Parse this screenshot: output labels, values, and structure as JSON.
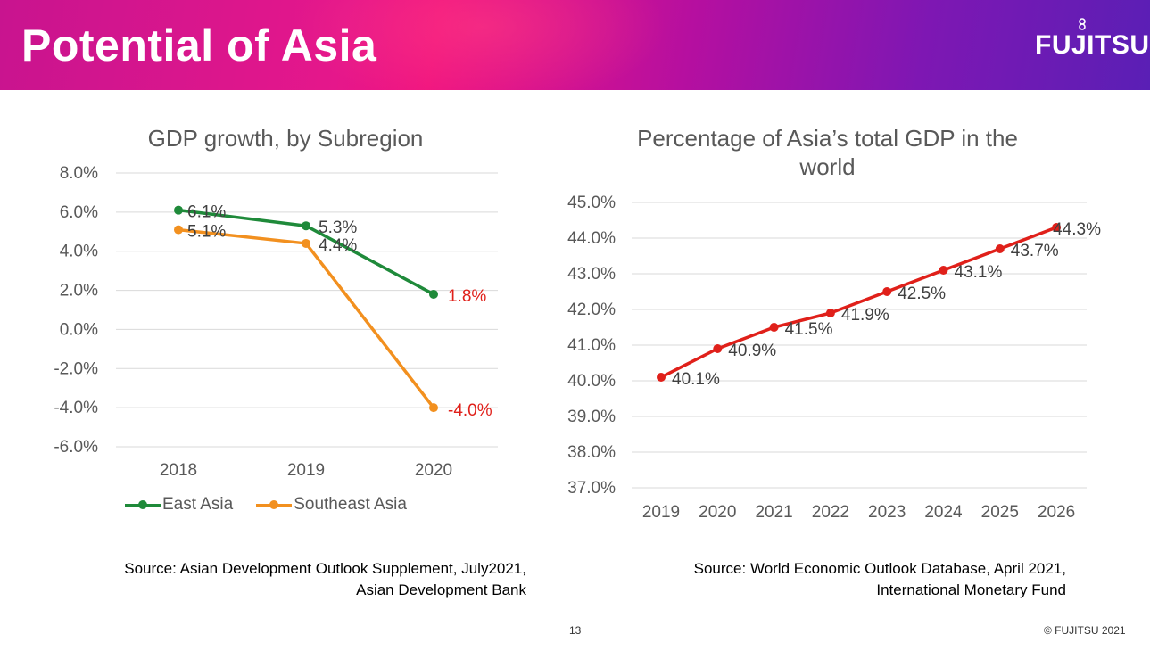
{
  "header": {
    "title": "Potential of Asia",
    "logo": "FUJITSU"
  },
  "footer": {
    "page_number": "13",
    "copyright": "© FUJITSU 2021"
  },
  "charts": {
    "left": {
      "source_line1": "Source: Asian Development Outlook Supplement, July2021,",
      "source_line2": "Asian Development Bank"
    },
    "right": {
      "source_line1": "Source: World Economic Outlook Database, April 2021,",
      "source_line2": "International Monetary Fund"
    }
  },
  "chart_data": [
    {
      "type": "line",
      "title": "GDP growth, by Subregion",
      "categories": [
        "2018",
        "2019",
        "2020"
      ],
      "yticks": [
        "8.0%",
        "6.0%",
        "4.0%",
        "2.0%",
        "0.0%",
        "-2.0%",
        "-4.0%",
        "-6.0%"
      ],
      "ylim": [
        -6,
        8
      ],
      "grid": true,
      "legend": "bottom",
      "series": [
        {
          "name": "East Asia",
          "color": "#1f8a3a",
          "values": [
            6.1,
            5.3,
            1.8
          ],
          "labels": [
            "6.1%",
            "5.3%",
            "1.8%"
          ],
          "label_colors": [
            "#404040",
            "#404040",
            "#e0201a"
          ]
        },
        {
          "name": "Southeast Asia",
          "color": "#f2901f",
          "values": [
            5.1,
            4.4,
            -4.0
          ],
          "labels": [
            "5.1%",
            "4.4%",
            "-4.0%"
          ],
          "label_colors": [
            "#404040",
            "#404040",
            "#e0201a"
          ]
        }
      ]
    },
    {
      "type": "line",
      "title_line1": "Percentage of Asia’s total GDP in the",
      "title_line2": "world",
      "categories": [
        "2019",
        "2020",
        "2021",
        "2022",
        "2023",
        "2024",
        "2025",
        "2026"
      ],
      "yticks": [
        "45.0%",
        "44.0%",
        "43.0%",
        "42.0%",
        "41.0%",
        "40.0%",
        "39.0%",
        "38.0%",
        "37.0%"
      ],
      "ylim": [
        37,
        45
      ],
      "grid": true,
      "series": [
        {
          "color": "#e0201a",
          "values": [
            40.1,
            40.9,
            41.5,
            41.9,
            42.5,
            43.1,
            43.7,
            44.3
          ],
          "labels": [
            "40.1%",
            "40.9%",
            "41.5%",
            "41.9%",
            "42.5%",
            "43.1%",
            "43.7%",
            "44.3%"
          ]
        }
      ]
    }
  ]
}
